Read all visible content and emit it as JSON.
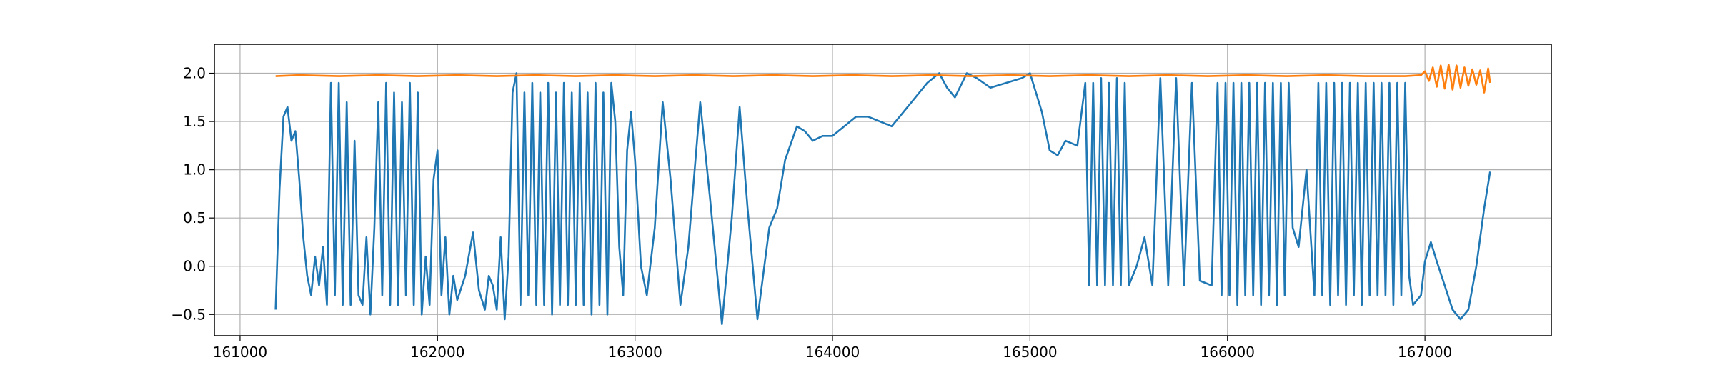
{
  "chart_data": {
    "type": "line",
    "title": "",
    "xlabel": "",
    "ylabel": "",
    "xlim": [
      160870,
      167640
    ],
    "ylim": [
      -0.72,
      2.3
    ],
    "grid": true,
    "x_ticks": [
      {
        "value": 161000,
        "label": "161000"
      },
      {
        "value": 162000,
        "label": "162000"
      },
      {
        "value": 163000,
        "label": "163000"
      },
      {
        "value": 164000,
        "label": "164000"
      },
      {
        "value": 165000,
        "label": "165000"
      },
      {
        "value": 166000,
        "label": "166000"
      },
      {
        "value": 167000,
        "label": "167000"
      }
    ],
    "y_ticks": [
      {
        "value": -0.5,
        "label": "−0.5"
      },
      {
        "value": 0.0,
        "label": "0.0"
      },
      {
        "value": 0.5,
        "label": "0.5"
      },
      {
        "value": 1.0,
        "label": "1.0"
      },
      {
        "value": 1.5,
        "label": "1.5"
      },
      {
        "value": 2.0,
        "label": "2.0"
      }
    ],
    "series": [
      {
        "color": "#1f77b4",
        "points": [
          [
            161180,
            -0.45
          ],
          [
            161200,
            0.8
          ],
          [
            161220,
            1.55
          ],
          [
            161240,
            1.65
          ],
          [
            161260,
            1.3
          ],
          [
            161280,
            1.4
          ],
          [
            161300,
            0.9
          ],
          [
            161320,
            0.3
          ],
          [
            161340,
            -0.1
          ],
          [
            161360,
            -0.3
          ],
          [
            161380,
            0.1
          ],
          [
            161400,
            -0.2
          ],
          [
            161420,
            0.2
          ],
          [
            161440,
            -0.4
          ],
          [
            161460,
            1.9
          ],
          [
            161480,
            -0.3
          ],
          [
            161500,
            1.9
          ],
          [
            161520,
            -0.4
          ],
          [
            161540,
            1.7
          ],
          [
            161560,
            -0.4
          ],
          [
            161580,
            1.3
          ],
          [
            161600,
            -0.3
          ],
          [
            161620,
            -0.4
          ],
          [
            161640,
            0.3
          ],
          [
            161660,
            -0.5
          ],
          [
            161680,
            0.4
          ],
          [
            161700,
            1.7
          ],
          [
            161720,
            -0.3
          ],
          [
            161740,
            1.9
          ],
          [
            161760,
            -0.4
          ],
          [
            161780,
            1.8
          ],
          [
            161800,
            -0.4
          ],
          [
            161820,
            1.7
          ],
          [
            161840,
            -0.3
          ],
          [
            161860,
            1.9
          ],
          [
            161880,
            -0.4
          ],
          [
            161900,
            1.8
          ],
          [
            161920,
            -0.5
          ],
          [
            161940,
            0.1
          ],
          [
            161960,
            -0.4
          ],
          [
            161980,
            0.9
          ],
          [
            162000,
            1.2
          ],
          [
            162020,
            -0.3
          ],
          [
            162040,
            0.3
          ],
          [
            162060,
            -0.5
          ],
          [
            162080,
            -0.1
          ],
          [
            162100,
            -0.35
          ],
          [
            162140,
            -0.1
          ],
          [
            162180,
            0.35
          ],
          [
            162210,
            -0.25
          ],
          [
            162240,
            -0.45
          ],
          [
            162260,
            -0.1
          ],
          [
            162280,
            -0.2
          ],
          [
            162300,
            -0.45
          ],
          [
            162320,
            0.3
          ],
          [
            162340,
            -0.55
          ],
          [
            162360,
            0.1
          ],
          [
            162380,
            1.8
          ],
          [
            162400,
            2.0
          ],
          [
            162420,
            -0.4
          ],
          [
            162440,
            1.8
          ],
          [
            162460,
            -0.3
          ],
          [
            162480,
            1.9
          ],
          [
            162500,
            -0.4
          ],
          [
            162520,
            1.8
          ],
          [
            162540,
            -0.4
          ],
          [
            162560,
            1.9
          ],
          [
            162580,
            -0.5
          ],
          [
            162600,
            1.8
          ],
          [
            162620,
            -0.4
          ],
          [
            162640,
            1.9
          ],
          [
            162660,
            -0.4
          ],
          [
            162680,
            1.8
          ],
          [
            162700,
            -0.4
          ],
          [
            162720,
            1.9
          ],
          [
            162740,
            -0.4
          ],
          [
            162760,
            1.8
          ],
          [
            162780,
            -0.5
          ],
          [
            162800,
            1.9
          ],
          [
            162820,
            -0.4
          ],
          [
            162840,
            1.8
          ],
          [
            162860,
            -0.5
          ],
          [
            162880,
            1.9
          ],
          [
            162900,
            1.5
          ],
          [
            162920,
            0.2
          ],
          [
            162940,
            -0.3
          ],
          [
            162960,
            1.2
          ],
          [
            162980,
            1.6
          ],
          [
            163000,
            1.1
          ],
          [
            163030,
            0.0
          ],
          [
            163060,
            -0.3
          ],
          [
            163100,
            0.4
          ],
          [
            163140,
            1.7
          ],
          [
            163180,
            0.9
          ],
          [
            163230,
            -0.4
          ],
          [
            163270,
            0.2
          ],
          [
            163330,
            1.7
          ],
          [
            163380,
            0.7
          ],
          [
            163440,
            -0.6
          ],
          [
            163490,
            0.5
          ],
          [
            163530,
            1.65
          ],
          [
            163570,
            0.6
          ],
          [
            163620,
            -0.55
          ],
          [
            163680,
            0.4
          ],
          [
            163720,
            0.6
          ],
          [
            163760,
            1.1
          ],
          [
            163820,
            1.45
          ],
          [
            163860,
            1.4
          ],
          [
            163900,
            1.3
          ],
          [
            163950,
            1.35
          ],
          [
            164000,
            1.35
          ],
          [
            164060,
            1.45
          ],
          [
            164120,
            1.55
          ],
          [
            164180,
            1.55
          ],
          [
            164240,
            1.5
          ],
          [
            164300,
            1.45
          ],
          [
            164360,
            1.6
          ],
          [
            164420,
            1.75
          ],
          [
            164480,
            1.9
          ],
          [
            164540,
            2.0
          ],
          [
            164580,
            1.85
          ],
          [
            164620,
            1.75
          ],
          [
            164680,
            2.0
          ],
          [
            164730,
            1.95
          ],
          [
            164800,
            1.85
          ],
          [
            164880,
            1.9
          ],
          [
            164960,
            1.95
          ],
          [
            165000,
            2.0
          ],
          [
            165060,
            1.6
          ],
          [
            165100,
            1.2
          ],
          [
            165140,
            1.15
          ],
          [
            165180,
            1.3
          ],
          [
            165240,
            1.25
          ],
          [
            165280,
            1.9
          ],
          [
            165300,
            -0.2
          ],
          [
            165320,
            1.9
          ],
          [
            165340,
            -0.2
          ],
          [
            165360,
            1.95
          ],
          [
            165380,
            -0.2
          ],
          [
            165400,
            1.9
          ],
          [
            165420,
            -0.2
          ],
          [
            165440,
            1.95
          ],
          [
            165460,
            -0.2
          ],
          [
            165480,
            1.9
          ],
          [
            165500,
            -0.2
          ],
          [
            165540,
            0.0
          ],
          [
            165580,
            0.3
          ],
          [
            165620,
            -0.2
          ],
          [
            165660,
            1.95
          ],
          [
            165700,
            -0.2
          ],
          [
            165740,
            1.95
          ],
          [
            165780,
            -0.2
          ],
          [
            165820,
            1.9
          ],
          [
            165860,
            -0.15
          ],
          [
            165920,
            -0.2
          ],
          [
            165950,
            1.9
          ],
          [
            165970,
            -0.3
          ],
          [
            165990,
            1.9
          ],
          [
            166010,
            -0.3
          ],
          [
            166030,
            1.9
          ],
          [
            166050,
            -0.4
          ],
          [
            166070,
            1.9
          ],
          [
            166090,
            -0.3
          ],
          [
            166110,
            1.9
          ],
          [
            166130,
            -0.3
          ],
          [
            166150,
            1.9
          ],
          [
            166170,
            -0.4
          ],
          [
            166190,
            1.9
          ],
          [
            166210,
            -0.3
          ],
          [
            166230,
            1.9
          ],
          [
            166250,
            -0.4
          ],
          [
            166270,
            1.9
          ],
          [
            166290,
            -0.3
          ],
          [
            166310,
            1.9
          ],
          [
            166330,
            0.4
          ],
          [
            166360,
            0.2
          ],
          [
            166400,
            1.0
          ],
          [
            166440,
            -0.3
          ],
          [
            166460,
            1.9
          ],
          [
            166480,
            -0.3
          ],
          [
            166500,
            1.9
          ],
          [
            166520,
            -0.4
          ],
          [
            166540,
            1.9
          ],
          [
            166560,
            -0.3
          ],
          [
            166580,
            1.9
          ],
          [
            166600,
            -0.4
          ],
          [
            166620,
            1.9
          ],
          [
            166640,
            -0.3
          ],
          [
            166660,
            1.9
          ],
          [
            166680,
            -0.4
          ],
          [
            166700,
            1.9
          ],
          [
            166720,
            -0.3
          ],
          [
            166740,
            1.9
          ],
          [
            166760,
            -0.3
          ],
          [
            166780,
            1.9
          ],
          [
            166800,
            -0.3
          ],
          [
            166820,
            1.9
          ],
          [
            166840,
            -0.4
          ],
          [
            166860,
            1.9
          ],
          [
            166880,
            -0.3
          ],
          [
            166900,
            1.9
          ],
          [
            166920,
            -0.1
          ],
          [
            166940,
            -0.4
          ],
          [
            166980,
            -0.3
          ],
          [
            167000,
            0.05
          ],
          [
            167030,
            0.25
          ],
          [
            167060,
            0.05
          ],
          [
            167100,
            -0.2
          ],
          [
            167140,
            -0.45
          ],
          [
            167180,
            -0.55
          ],
          [
            167220,
            -0.45
          ],
          [
            167260,
            0.0
          ],
          [
            167300,
            0.6
          ],
          [
            167330,
            0.98
          ]
        ]
      },
      {
        "color": "#ff7f0e",
        "points": [
          [
            161180,
            1.97
          ],
          [
            161300,
            1.98
          ],
          [
            161500,
            1.97
          ],
          [
            161700,
            1.98
          ],
          [
            161900,
            1.97
          ],
          [
            162100,
            1.98
          ],
          [
            162300,
            1.97
          ],
          [
            162500,
            1.98
          ],
          [
            162700,
            1.97
          ],
          [
            162900,
            1.98
          ],
          [
            163100,
            1.97
          ],
          [
            163300,
            1.98
          ],
          [
            163500,
            1.97
          ],
          [
            163700,
            1.98
          ],
          [
            163900,
            1.97
          ],
          [
            164100,
            1.98
          ],
          [
            164300,
            1.97
          ],
          [
            164500,
            1.98
          ],
          [
            164700,
            1.97
          ],
          [
            164900,
            1.98
          ],
          [
            165100,
            1.97
          ],
          [
            165300,
            1.98
          ],
          [
            165500,
            1.97
          ],
          [
            165700,
            1.98
          ],
          [
            165900,
            1.97
          ],
          [
            166100,
            1.98
          ],
          [
            166300,
            1.97
          ],
          [
            166500,
            1.98
          ],
          [
            166700,
            1.97
          ],
          [
            166900,
            1.97
          ],
          [
            166980,
            1.98
          ],
          [
            167000,
            2.02
          ],
          [
            167020,
            1.92
          ],
          [
            167040,
            2.06
          ],
          [
            167060,
            1.86
          ],
          [
            167080,
            2.08
          ],
          [
            167100,
            1.84
          ],
          [
            167120,
            2.09
          ],
          [
            167140,
            1.83
          ],
          [
            167160,
            2.08
          ],
          [
            167180,
            1.85
          ],
          [
            167200,
            2.06
          ],
          [
            167220,
            1.87
          ],
          [
            167240,
            2.04
          ],
          [
            167260,
            1.88
          ],
          [
            167280,
            2.03
          ],
          [
            167300,
            1.8
          ],
          [
            167320,
            2.05
          ],
          [
            167330,
            1.9
          ]
        ]
      }
    ]
  }
}
